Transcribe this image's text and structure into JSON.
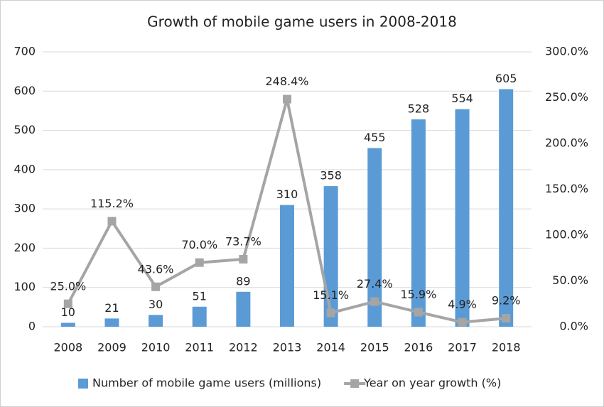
{
  "chart_data": {
    "type": "bar-line",
    "title": "Growth of mobile game users in 2008-2018",
    "categories": [
      "2008",
      "2009",
      "2010",
      "2011",
      "2012",
      "2013",
      "2014",
      "2015",
      "2016",
      "2017",
      "2018"
    ],
    "series": [
      {
        "name": "Number of mobile game users (millions)",
        "type": "bar",
        "color": "#5b9bd5",
        "values": [
          10,
          21,
          30,
          51,
          89,
          310,
          358,
          455,
          528,
          554,
          605
        ]
      },
      {
        "name": "Year on year growth (%)",
        "type": "line",
        "axis": "y2",
        "color": "#a5a5a5",
        "values": [
          25.0,
          115.2,
          43.6,
          70.0,
          73.7,
          248.4,
          15.1,
          27.4,
          15.9,
          4.9,
          9.2
        ],
        "value_labels": [
          "25.0%",
          "115.2%",
          "43.6%",
          "70.0%",
          "73.7%",
          "248.4%",
          "15.1%",
          "27.4%",
          "15.9%",
          "4.9%",
          "9.2%"
        ]
      }
    ],
    "ylim": [
      0,
      700
    ],
    "yticks": [
      0,
      100,
      200,
      300,
      400,
      500,
      600,
      700
    ],
    "y2lim": [
      0,
      300
    ],
    "y2ticks": [
      {
        "value": 0,
        "label": "0.0%"
      },
      {
        "value": 50,
        "label": "50.0%"
      },
      {
        "value": 100,
        "label": "100.0%"
      },
      {
        "value": 150,
        "label": "150.0%"
      },
      {
        "value": 200,
        "label": "200.0%"
      },
      {
        "value": 250,
        "label": "250.0%"
      },
      {
        "value": 300,
        "label": "300.0%"
      }
    ],
    "grid": true,
    "legend": "bottom"
  }
}
